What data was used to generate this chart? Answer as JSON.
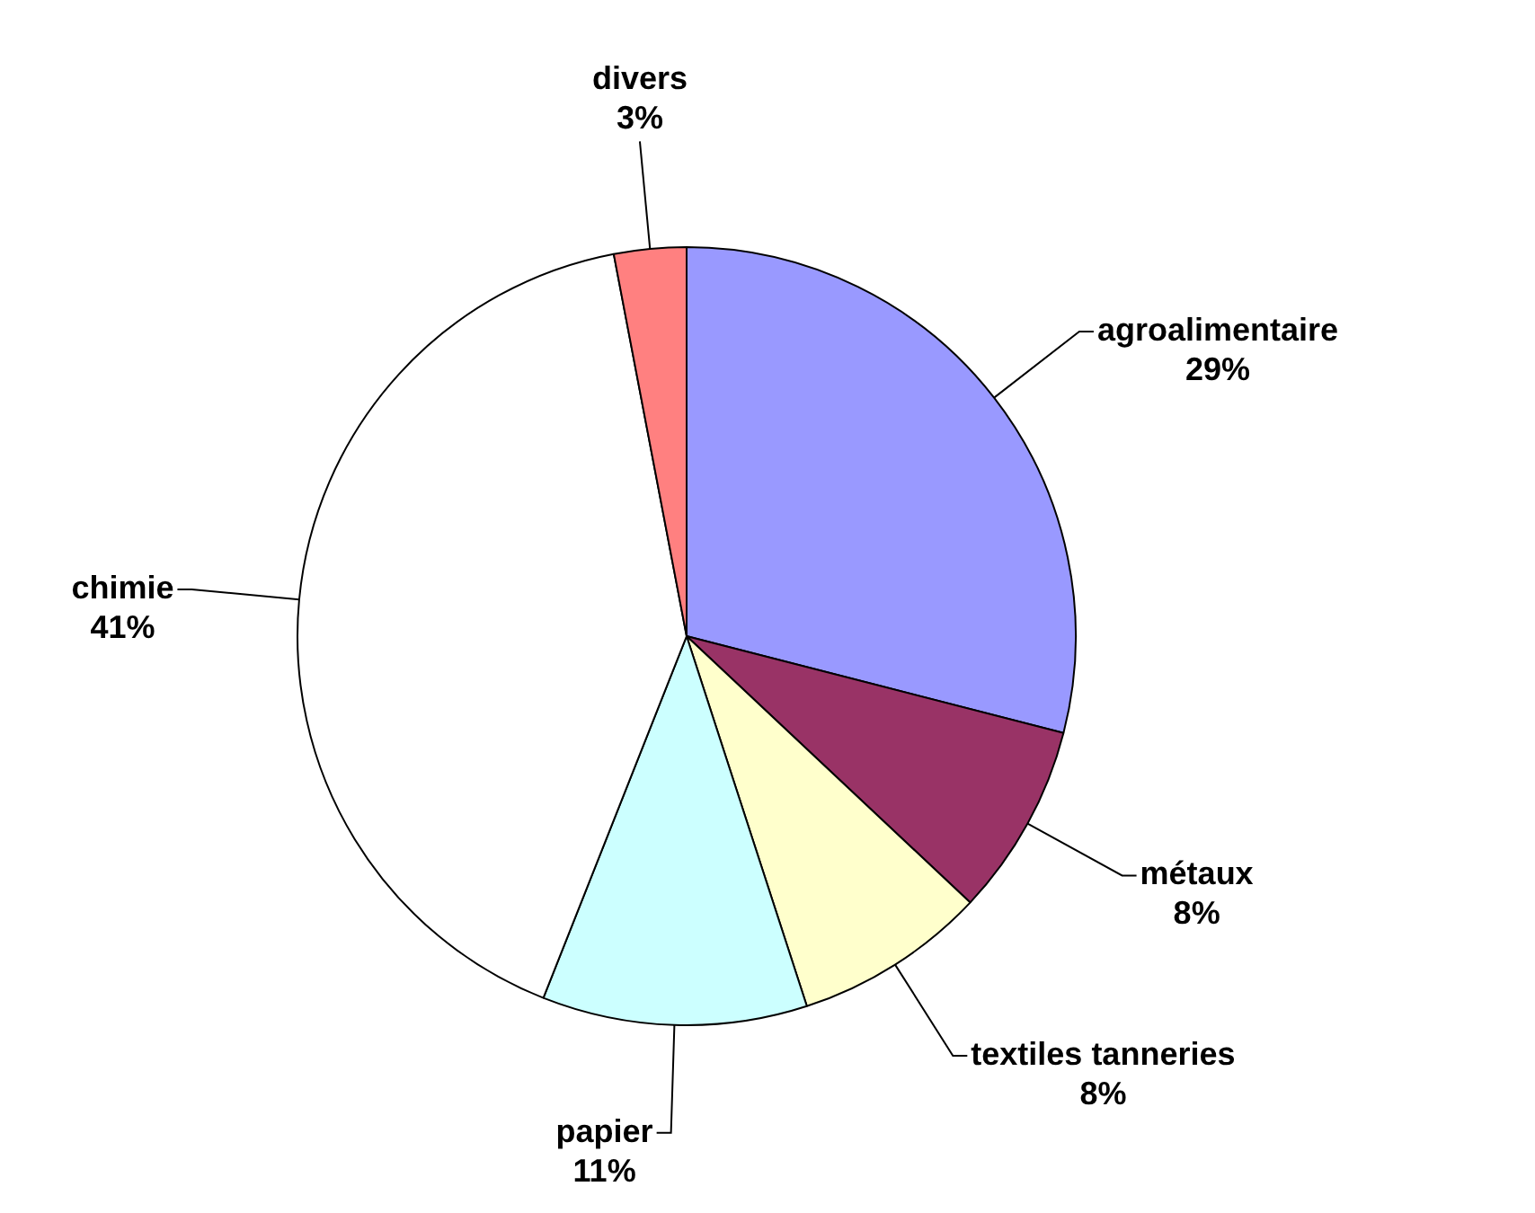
{
  "chart_data": {
    "type": "pie",
    "categories": [
      "agroalimentaire",
      "métaux",
      "textiles tanneries",
      "papier",
      "chimie",
      "divers"
    ],
    "values": [
      29,
      8,
      8,
      11,
      41,
      3
    ],
    "colors": [
      "#9999ff",
      "#993366",
      "#ffffcc",
      "#ccffff",
      "#ffffff",
      "#ff8080"
    ],
    "value_labels": [
      "29%",
      "8%",
      "8%",
      "11%",
      "41%",
      "3%"
    ]
  }
}
